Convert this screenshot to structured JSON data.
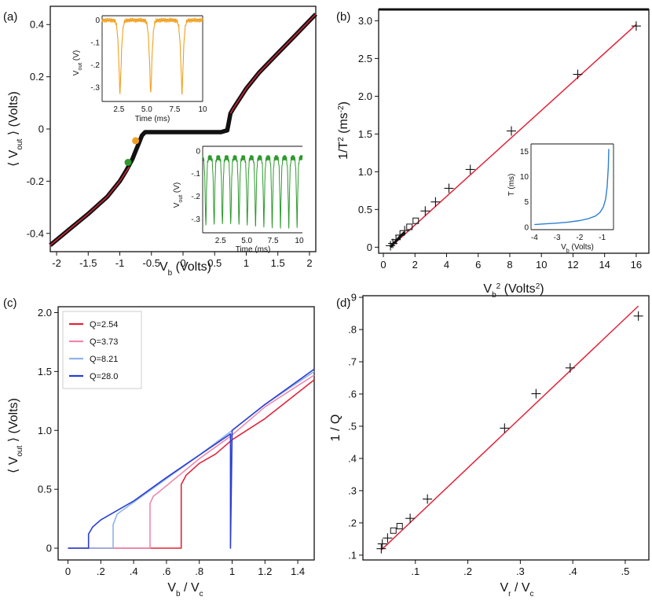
{
  "colors": {
    "fit": "#e0243a",
    "data": "#111111",
    "orange": "#f0a020",
    "green": "#2e9a2e",
    "blue_line": "#2f7fd0",
    "q1": "#e0243a",
    "q2": "#ee88b0",
    "q3": "#8fb4e8",
    "q4": "#2a3fd0"
  },
  "chart_data": [
    {
      "id": "a",
      "panel_label": "(a)",
      "type": "scatter",
      "xlabel_main": "V",
      "xlabel_sub": "b",
      "xlabel_unit": "(Volts)",
      "ylabel_main": "V",
      "ylabel_sub": "out",
      "ylabel_unit": "(Volts)",
      "xlim": [
        -2.1,
        2.1
      ],
      "ylim": [
        -0.47,
        0.47
      ],
      "x_ticks": [
        -2,
        -1.5,
        -1,
        -0.5,
        0,
        0.5,
        1,
        1.5,
        2
      ],
      "x_tick_labels": [
        "-2",
        "-1.5",
        "-1",
        "-0.5",
        "0",
        "0.5",
        "1",
        "1.5",
        "2"
      ],
      "y_ticks": [
        -0.4,
        -0.2,
        0,
        0.2,
        0.4
      ],
      "y_tick_labels": [
        "-0.4",
        "-0.2",
        "0",
        "0.2",
        "0.4"
      ],
      "series": [
        {
          "name": "data",
          "color": "#111111",
          "x": [
            -2.1,
            -1.8,
            -1.5,
            -1.2,
            -1.0,
            -0.9,
            -0.8,
            -0.75,
            -0.7,
            -0.65,
            -0.6,
            -0.3,
            0,
            0.3,
            0.6,
            0.7,
            0.72,
            0.75,
            0.8,
            1.0,
            1.2,
            1.5,
            1.8,
            2.1
          ],
          "y": [
            -0.445,
            -0.385,
            -0.325,
            -0.26,
            -0.2,
            -0.16,
            -0.115,
            -0.085,
            -0.055,
            -0.025,
            -0.012,
            -0.012,
            -0.012,
            -0.012,
            -0.012,
            -0.005,
            0.02,
            0.06,
            0.08,
            0.155,
            0.215,
            0.29,
            0.365,
            0.44
          ]
        },
        {
          "name": "fit",
          "color": "#e0243a",
          "x": [
            -2.1,
            -1.8,
            -1.5,
            -1.2,
            -1.0,
            -0.85,
            0.75,
            0.8,
            1.0,
            1.2,
            1.5,
            1.8,
            2.1
          ],
          "y": [
            -0.445,
            -0.385,
            -0.325,
            -0.26,
            -0.2,
            -0.145,
            0.06,
            0.08,
            0.155,
            0.215,
            0.29,
            0.365,
            0.44
          ]
        }
      ],
      "markers": [
        {
          "x": -0.75,
          "y": -0.045,
          "color": "#f0a020"
        },
        {
          "x": -0.87,
          "y": -0.128,
          "color": "#2e9a2e"
        }
      ],
      "insets": [
        {
          "id": "a1",
          "type": "line",
          "color": "#f0a020",
          "xlabel": "Time (ms)",
          "ylabel_main": "V",
          "ylabel_sub": "out",
          "ylabel_unit": "(V)",
          "xlim": [
            1.0,
            10.0
          ],
          "ylim": [
            -0.35,
            0.02
          ],
          "x_ticks": [
            2.5,
            5.0,
            7.5,
            10
          ],
          "x_tick_labels": [
            "2.5",
            "5.0",
            "7.5",
            "10"
          ],
          "y_ticks": [
            0,
            -0.1,
            -0.2,
            -0.3
          ],
          "y_tick_labels": [
            "0",
            "-.1",
            "-.2",
            "-.3"
          ],
          "spike_times": [
            2.6,
            5.35,
            8.15
          ],
          "spike_depth": -0.33,
          "baseline": 0.0
        },
        {
          "id": "a2",
          "type": "line",
          "color": "#2e9a2e",
          "xlabel": "Time (ms)",
          "ylabel_main": "V",
          "ylabel_sub": "out",
          "ylabel_unit": "(V)",
          "xlim": [
            0.8,
            10.3
          ],
          "ylim": [
            -0.36,
            0.02
          ],
          "x_ticks": [
            2.5,
            5.0,
            7.5,
            10
          ],
          "x_tick_labels": [
            "2.5",
            "5.0",
            "7.5",
            "10"
          ],
          "y_ticks": [
            0,
            -0.1,
            -0.2,
            -0.3
          ],
          "y_tick_labels": [
            "0",
            "-.1",
            "-.2",
            "-.3"
          ],
          "period": 0.79,
          "first_spike": 1.1,
          "spike_depth": -0.33,
          "baseline": -0.03
        }
      ]
    },
    {
      "id": "b",
      "panel_label": "(b)",
      "type": "scatter",
      "xlabel_main": "V",
      "xlabel_sub": "b",
      "xlabel_sup": "2",
      "xlabel_unit": "(Volts",
      "xlabel_unit_sup": "2",
      "xlabel_unit_end": ")",
      "ylabel_main": "1/T",
      "ylabel_sup": "2",
      "ylabel_unit": "(ms",
      "ylabel_unit_sup": "-2",
      "ylabel_unit_end": ")",
      "xlim": [
        -0.3,
        16.8
      ],
      "ylim": [
        -0.08,
        3.15
      ],
      "x_ticks": [
        0,
        2,
        4,
        6,
        8,
        10,
        12,
        14,
        16
      ],
      "x_tick_labels": [
        "0",
        "2",
        "4",
        "6",
        "8",
        "10",
        "12",
        "14",
        "16"
      ],
      "y_ticks": [
        0,
        0.5,
        1.0,
        1.5,
        2.0,
        2.5,
        3.0
      ],
      "y_tick_labels": [
        "0",
        "0.5",
        "1.0",
        "1.5",
        "2.0",
        "2.5",
        "3.0"
      ],
      "fit_line": {
        "x0": 0.45,
        "y0": 0.0,
        "x1": 16.0,
        "y1": 2.95
      },
      "points_plus": [
        [
          16.0,
          2.93
        ],
        [
          12.3,
          2.29
        ],
        [
          8.1,
          1.54
        ],
        [
          5.5,
          1.03
        ],
        [
          4.15,
          0.78
        ],
        [
          3.3,
          0.6
        ],
        [
          2.65,
          0.48
        ],
        [
          1.35,
          0.22
        ],
        [
          1.05,
          0.16
        ],
        [
          0.8,
          0.1
        ],
        [
          0.6,
          0.05
        ],
        [
          0.45,
          0.02
        ]
      ],
      "points_square": [
        [
          2.05,
          0.35
        ],
        [
          1.65,
          0.27
        ]
      ],
      "inset": {
        "id": "b1",
        "type": "line",
        "color": "#2f7fd0",
        "xlabel_main": "V",
        "xlabel_sub": "b",
        "xlabel_unit": "(Volts)",
        "ylabel": "T (ms)",
        "xlim": [
          -4.15,
          -0.5
        ],
        "ylim": [
          -0.5,
          16.5
        ],
        "x_ticks": [
          -4,
          -3,
          -2,
          -1
        ],
        "x_tick_labels": [
          "-4",
          "-3",
          "-2",
          "-1"
        ],
        "y_ticks": [
          0,
          5,
          10,
          15
        ],
        "y_tick_labels": [
          "0",
          "5",
          "10",
          "15"
        ],
        "x": [
          -4.0,
          -3.5,
          -3.0,
          -2.5,
          -2.0,
          -1.6,
          -1.3,
          -1.1,
          -0.95,
          -0.85,
          -0.78,
          -0.73,
          -0.71
        ],
        "y": [
          0.5,
          0.65,
          0.8,
          1.0,
          1.3,
          1.7,
          2.2,
          2.9,
          4.0,
          5.5,
          8.0,
          12.0,
          15.5
        ]
      }
    },
    {
      "id": "c",
      "panel_label": "(c)",
      "type": "line",
      "xlabel_main": "V",
      "xlabel_sub": "b",
      "xlabel_mid": " / V",
      "xlabel_sub2": "c",
      "ylabel_main": "V",
      "ylabel_sub": "out",
      "ylabel_unit": "(Volts)",
      "xlim": [
        -0.06,
        1.5
      ],
      "ylim": [
        -0.1,
        2.05
      ],
      "x_ticks": [
        0,
        0.2,
        0.4,
        0.6,
        0.8,
        1.0,
        1.2,
        1.4
      ],
      "x_tick_labels": [
        "0",
        ".2",
        ".4",
        ".6",
        ".8",
        "1",
        "1.2",
        "1.4"
      ],
      "y_ticks": [
        0,
        0.5,
        1.0,
        1.5,
        2.0
      ],
      "y_tick_labels": [
        "0",
        "0.5",
        "1.0",
        "1.5",
        "2.0"
      ],
      "series": [
        {
          "name": "Q=2.54",
          "color": "#e0243a",
          "x": [
            0,
            0.69,
            0.69,
            0.72,
            0.8,
            0.9,
            1.0,
            1.2,
            1.5
          ],
          "y": [
            0,
            0,
            0.54,
            0.62,
            0.72,
            0.8,
            0.92,
            1.1,
            1.43
          ]
        },
        {
          "name": "Q=3.73",
          "color": "#ee88b0",
          "x": [
            0,
            0.5,
            0.5,
            0.52,
            0.6,
            0.8,
            1.0,
            1.2,
            1.5
          ],
          "y": [
            0,
            0,
            0.38,
            0.44,
            0.53,
            0.76,
            0.96,
            1.2,
            1.47
          ]
        },
        {
          "name": "Q=8.21",
          "color": "#8fb4e8",
          "x": [
            0,
            0.275,
            0.275,
            0.3,
            0.4,
            0.6,
            0.8,
            1.0,
            1.2,
            1.5
          ],
          "y": [
            0,
            0,
            0.2,
            0.29,
            0.39,
            0.59,
            0.79,
            1.0,
            1.22,
            1.5
          ]
        },
        {
          "name": "Q=28.0",
          "color": "#2a3fd0",
          "x": [
            0,
            0.125,
            0.125,
            0.15,
            0.2,
            0.4,
            0.6,
            0.8,
            0.99,
            0.99,
            1.0,
            1.2,
            1.5
          ],
          "y": [
            0,
            0,
            0.12,
            0.18,
            0.24,
            0.4,
            0.6,
            0.79,
            0.97,
            0,
            1.0,
            1.22,
            1.52
          ]
        }
      ],
      "legend": [
        "Q=2.54",
        "Q=3.73",
        "Q=8.21",
        "Q=28.0"
      ],
      "legend_position": "top-left"
    },
    {
      "id": "d",
      "panel_label": "(d)",
      "type": "scatter",
      "xlabel_main": "V",
      "xlabel_sub": "r",
      "xlabel_mid": " / V",
      "xlabel_sub2": "c",
      "ylabel": "1 / Q",
      "xlim": [
        0.0,
        0.545
      ],
      "ylim": [
        0.085,
        0.905
      ],
      "x_ticks": [
        0.1,
        0.2,
        0.3,
        0.4,
        0.5
      ],
      "x_tick_labels": [
        ".1",
        ".2",
        ".3",
        ".4",
        ".5"
      ],
      "y_ticks": [
        0.1,
        0.2,
        0.3,
        0.4,
        0.5,
        0.6,
        0.7,
        0.8,
        0.9
      ],
      "y_tick_labels": [
        ".1",
        ".2",
        ".3",
        ".4",
        ".5",
        ".6",
        ".7",
        ".8",
        ".9"
      ],
      "fit_line": {
        "x0": 0.035,
        "y0": 0.116,
        "x1": 0.525,
        "y1": 0.873
      },
      "points_plus": [
        [
          0.525,
          0.842
        ],
        [
          0.395,
          0.681
        ],
        [
          0.33,
          0.601
        ],
        [
          0.27,
          0.494
        ],
        [
          0.123,
          0.274
        ],
        [
          0.09,
          0.214
        ],
        [
          0.047,
          0.153
        ],
        [
          0.037,
          0.135
        ],
        [
          0.035,
          0.12
        ]
      ],
      "points_square": [
        [
          0.058,
          0.176
        ],
        [
          0.07,
          0.19
        ]
      ]
    }
  ]
}
